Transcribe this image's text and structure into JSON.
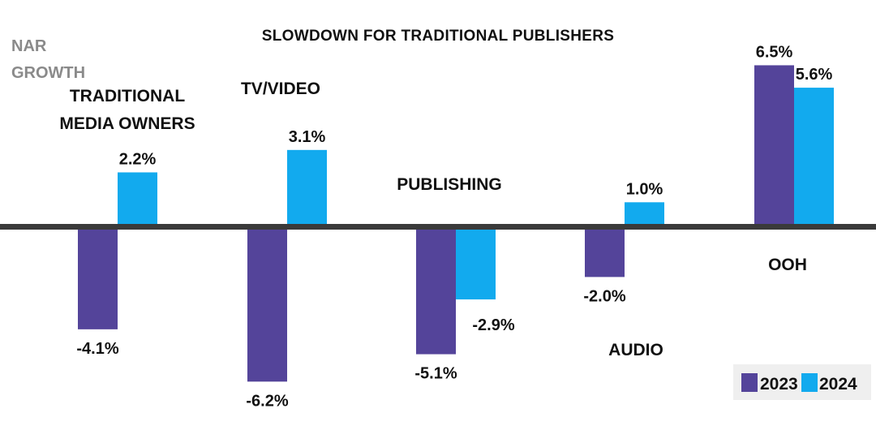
{
  "chart_data": {
    "type": "bar",
    "title": "SLOWDOWN FOR TRADITIONAL PUBLISHERS",
    "ylabel": [
      "NAR",
      "GROWTH"
    ],
    "categories": [
      "TRADITIONAL\nMEDIA OWNERS",
      "TV/VIDEO",
      "PUBLISHING",
      "AUDIO",
      "OOH"
    ],
    "series": [
      {
        "name": "2023",
        "color": "#54449a",
        "values": [
          -4.1,
          -6.2,
          -5.1,
          -2.0,
          6.5
        ]
      },
      {
        "name": "2024",
        "color": "#12aaee",
        "values": [
          2.2,
          3.1,
          -2.9,
          1.0,
          5.6
        ]
      }
    ],
    "value_labels": {
      "2023": [
        "-4.1%",
        "-6.2%",
        "-5.1%",
        "-2.0%",
        "6.5%"
      ],
      "2024": [
        "2.2%",
        "3.1%",
        "-2.9%",
        "1.0%",
        "5.6%"
      ]
    },
    "ylim": [
      -7,
      7
    ],
    "legend": "bottom-right",
    "grid": false
  }
}
